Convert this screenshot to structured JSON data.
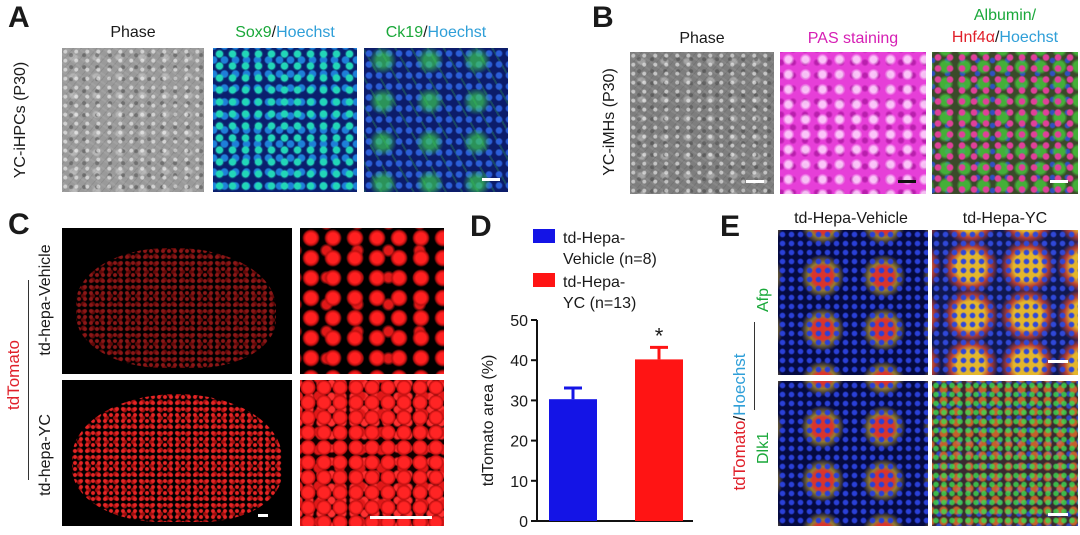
{
  "panel_letters": {
    "a": "A",
    "b": "B",
    "c": "C",
    "d": "D",
    "e": "E"
  },
  "panel_a": {
    "row_label": "YC-iHPCs (P30)",
    "headers": {
      "phase": "Phase",
      "sox9": "Sox9",
      "sox9_sep": "/",
      "sox9_hoechst": "Hoechst",
      "ck19": "Ck19",
      "ck19_sep": "/",
      "ck19_hoechst": "Hoechst"
    }
  },
  "panel_b": {
    "row_label": "YC-iMHs (P30)",
    "headers": {
      "phase": "Phase",
      "pas": "PAS staining",
      "albumin": "Albumin/",
      "hnf4a": "Hnf4α",
      "hnf4a_sep": "/",
      "hoechst": "Hoechst"
    }
  },
  "panel_c": {
    "stain_label": "tdTomato",
    "row_vehicle": "td-hepa-Vehicle",
    "row_yc": "td-hepa-YC"
  },
  "panel_d": {
    "chart_data": {
      "type": "bar",
      "categories": [
        "td-Hepa-Vehicle",
        "td-Hepa-YC"
      ],
      "values": [
        30.3,
        40.2
      ],
      "errors": [
        2.8,
        3.0
      ],
      "colors": [
        "#1414e6",
        "#ff1414"
      ],
      "ylabel": "tdTomato area (%)",
      "ylim": [
        0,
        50
      ],
      "yticks": [
        0,
        10,
        20,
        30,
        40,
        50
      ],
      "significance": [
        {
          "category": "td-Hepa-YC",
          "marker": "*"
        }
      ],
      "legend": [
        {
          "line1": "td-Hepa-",
          "line2": "Vehicle (n=8)",
          "color": "#1414e6"
        },
        {
          "line1": "td-Hepa-",
          "line2": "YC (n=13)",
          "color": "#ff1414"
        }
      ],
      "legend_position": "top"
    }
  },
  "panel_e": {
    "col_vehicle": "td-Hepa-Vehicle",
    "col_yc": "td-Hepa-YC",
    "label_tdtomato": "tdTomato",
    "label_sep": "/",
    "label_hoechst": "Hoechst",
    "row_afp": "Afp",
    "row_dlk1": "Dlk1"
  }
}
